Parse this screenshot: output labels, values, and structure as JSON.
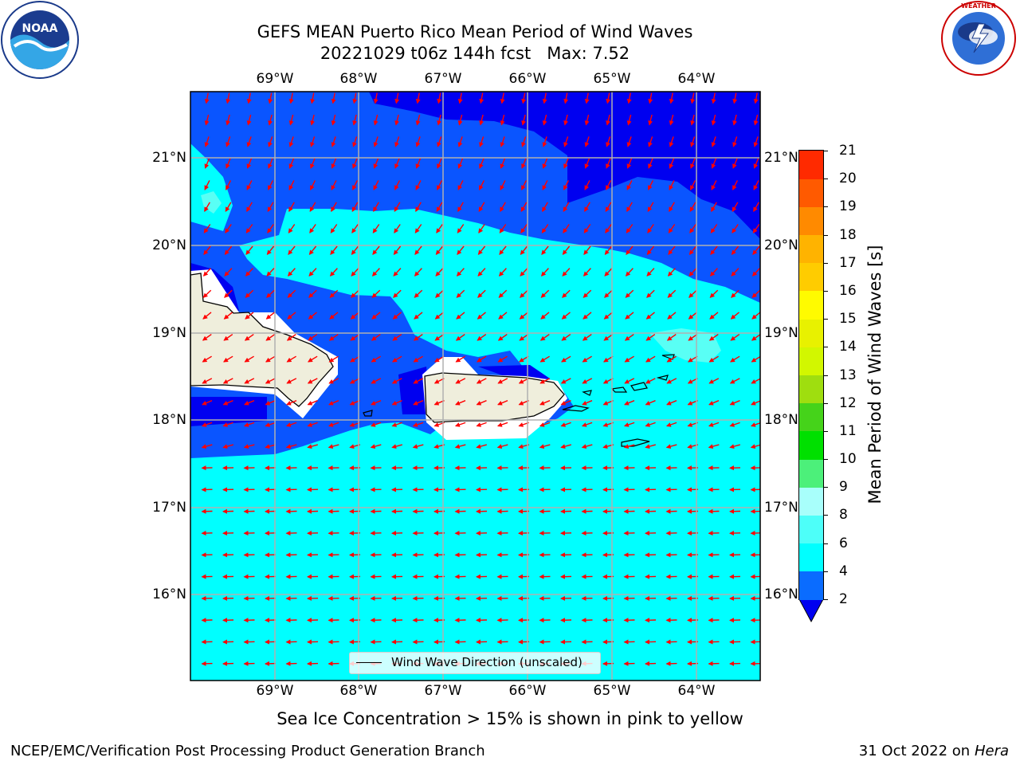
{
  "title": {
    "line1": "GEFS MEAN Puerto Rico Mean Period of Wind Waves",
    "line2": "20221029 t06z 144h fcst   Max: 7.52"
  },
  "map": {
    "lon_labels": [
      "69°W",
      "68°W",
      "67°W",
      "66°W",
      "65°W",
      "64°W"
    ],
    "lat_labels": [
      "21°N",
      "20°N",
      "19°N",
      "18°N",
      "17°N",
      "16°N"
    ],
    "colors": {
      "band_2_4": "#0a55ff",
      "band_lt_2": "#0000f0",
      "band_4_6": "#00ffff",
      "band_6_8": "#59fff5",
      "band_8_9": "#b0fff8",
      "land": "#efeedc",
      "arrow": "#ff0000",
      "grid": "#b0b0b0"
    },
    "legend_label": "Wind Wave Direction (unscaled)"
  },
  "colorbar": {
    "title": "Mean Period of Wind Waves [s]",
    "levels": [
      "2",
      "4",
      "6",
      "8",
      "9",
      "10",
      "11",
      "12",
      "13",
      "14",
      "15",
      "16",
      "17",
      "18",
      "19",
      "20",
      "21"
    ],
    "colors": [
      "#0a6cff",
      "#00ffff",
      "#4dfff9",
      "#a8fffb",
      "#4cf07a",
      "#00e000",
      "#45d31a",
      "#9fde0f",
      "#d2f700",
      "#e8f100",
      "#fffb00",
      "#ffcc00",
      "#ffb300",
      "#ff8a00",
      "#ff5a00",
      "#ff2a00"
    ],
    "under_color": "#0000f0"
  },
  "subtitle": "Sea Ice Concentration > 15% is shown in pink to yellow",
  "footer": {
    "left": "NCEP/EMC/Verification Post Processing Product Generation Branch",
    "right_prefix": "31 Oct 2022 on ",
    "right_host": "Hera"
  },
  "logos": {
    "noaa_text": "NOAA",
    "noaa_ring": "NATIONAL OCEANIC AND ATMOSPHERIC ADMINISTRATION · U.S. DEPARTMENT OF COMMERCE",
    "nws_ring": "NATIONAL WEATHER SERVICE"
  }
}
